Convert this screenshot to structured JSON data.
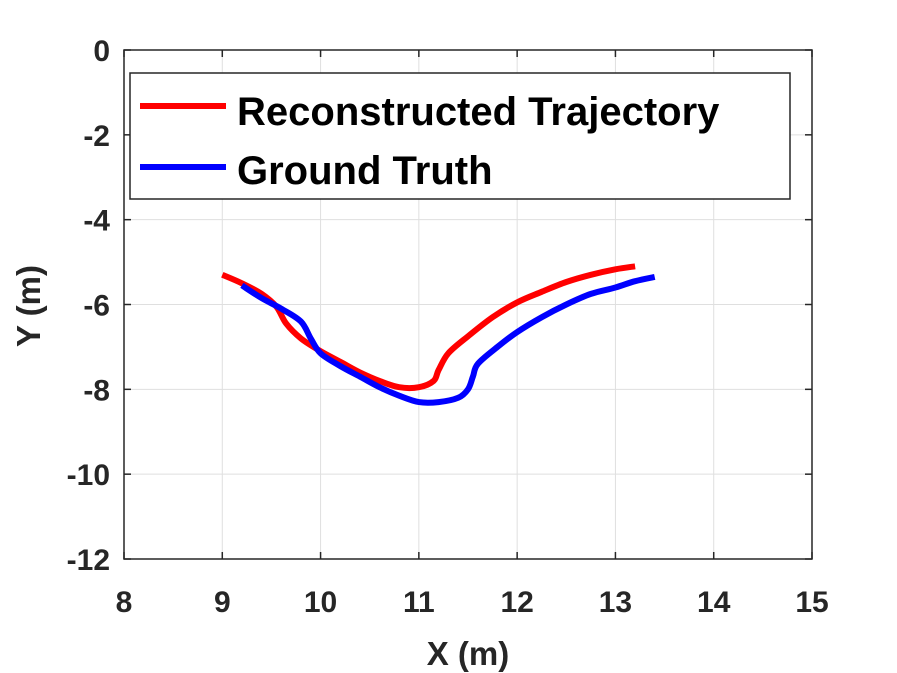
{
  "chart_data": {
    "type": "line",
    "xlabel": "X (m)",
    "ylabel": "Y (m)",
    "xlim": [
      8,
      15
    ],
    "ylim": [
      -12,
      0
    ],
    "xticks": [
      8,
      9,
      10,
      11,
      12,
      13,
      14,
      15
    ],
    "yticks": [
      0,
      -2,
      -4,
      -6,
      -8,
      -10,
      -12
    ],
    "xtick_labels": [
      "8",
      "9",
      "10",
      "11",
      "12",
      "13",
      "14",
      "15"
    ],
    "ytick_labels": [
      "0",
      "-2",
      "-4",
      "-6",
      "-8",
      "-10",
      "-12"
    ],
    "grid": true,
    "legend_position": "top-left",
    "series": [
      {
        "name": "Reconstructed Trajectory",
        "color": "#ff0000",
        "x": [
          9.0,
          9.2,
          9.4,
          9.55,
          9.65,
          9.8,
          10.0,
          10.2,
          10.4,
          10.6,
          10.8,
          11.0,
          11.15,
          11.2,
          11.3,
          11.5,
          11.75,
          12.0,
          12.25,
          12.5,
          12.75,
          13.0,
          13.2
        ],
        "y": [
          -5.3,
          -5.5,
          -5.75,
          -6.05,
          -6.45,
          -6.8,
          -7.1,
          -7.35,
          -7.6,
          -7.8,
          -7.95,
          -7.95,
          -7.8,
          -7.55,
          -7.15,
          -6.75,
          -6.3,
          -5.95,
          -5.7,
          -5.47,
          -5.3,
          -5.17,
          -5.1
        ]
      },
      {
        "name": "Ground Truth",
        "color": "#0000ff",
        "x": [
          9.2,
          9.4,
          9.6,
          9.8,
          9.9,
          10.0,
          10.2,
          10.4,
          10.6,
          10.8,
          11.0,
          11.2,
          11.4,
          11.5,
          11.55,
          11.6,
          11.8,
          12.0,
          12.25,
          12.5,
          12.75,
          13.0,
          13.2,
          13.4
        ],
        "y": [
          -5.55,
          -5.85,
          -6.1,
          -6.4,
          -6.8,
          -7.15,
          -7.45,
          -7.7,
          -7.95,
          -8.15,
          -8.3,
          -8.3,
          -8.2,
          -8.0,
          -7.7,
          -7.4,
          -7.0,
          -6.65,
          -6.3,
          -6.0,
          -5.75,
          -5.6,
          -5.45,
          -5.35
        ]
      }
    ]
  }
}
